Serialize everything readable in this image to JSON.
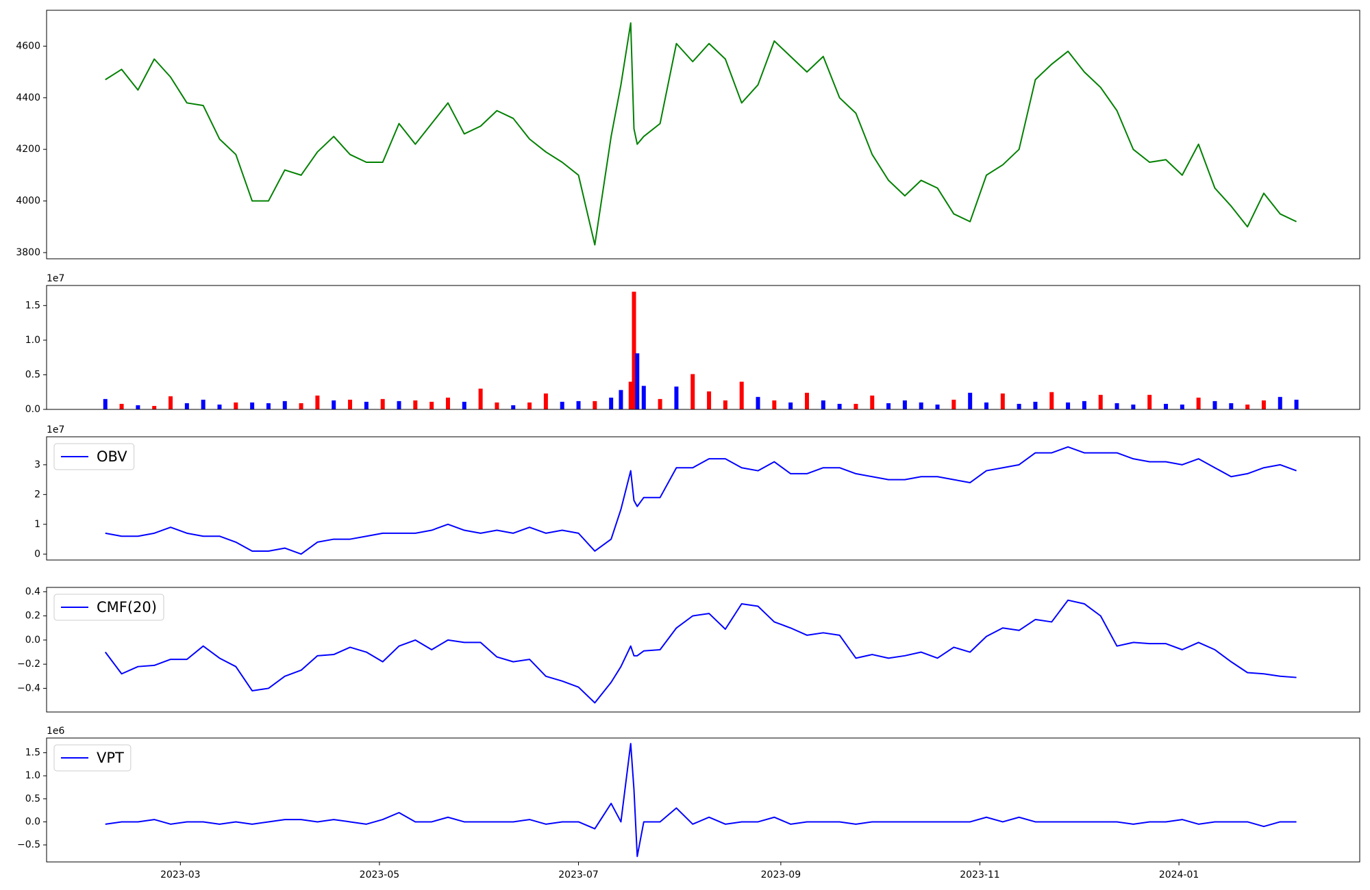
{
  "chart_data": [
    {
      "type": "line",
      "x": [
        36,
        41,
        46,
        51,
        56,
        61,
        66,
        71,
        76,
        81,
        86,
        91,
        96,
        101,
        106,
        111,
        116,
        121,
        126,
        131,
        136,
        141,
        146,
        151,
        156,
        161,
        166,
        171,
        176,
        181,
        186,
        191,
        194,
        197,
        198,
        199,
        201,
        206,
        211,
        216,
        221,
        226,
        231,
        236,
        241,
        246,
        251,
        256,
        261,
        266,
        271,
        276,
        281,
        286,
        291,
        296,
        301,
        306,
        311,
        316,
        321,
        326,
        331,
        336,
        341,
        346,
        351,
        356,
        361,
        366,
        371,
        376,
        381,
        386,
        391,
        396,
        401
      ],
      "series": [
        {
          "color": "#008000",
          "values": [
            4470,
            4510,
            4430,
            4550,
            4480,
            4380,
            4370,
            4240,
            4180,
            4000,
            4000,
            4120,
            4100,
            4190,
            4250,
            4180,
            4150,
            4150,
            4300,
            4220,
            4300,
            4380,
            4260,
            4290,
            4350,
            4320,
            4240,
            4190,
            4150,
            4100,
            3830,
            4250,
            4450,
            4690,
            4280,
            4220,
            4250,
            4300,
            4610,
            4540,
            4610,
            4550,
            4380,
            4450,
            4620,
            4560,
            4500,
            4560,
            4400,
            4340,
            4180,
            4080,
            4020,
            4080,
            4050,
            3950,
            3920,
            4100,
            4140,
            4200,
            4470,
            4530,
            4580,
            4500,
            4440,
            4350,
            4200,
            4150,
            4160,
            4100,
            4220,
            4050,
            3980,
            3900,
            4030,
            3950,
            3920
          ]
        }
      ],
      "xlim": [
        18,
        420.4
      ],
      "ylim": [
        3776,
        4739
      ],
      "yticks": [
        3800,
        4000,
        4200,
        4400,
        4600
      ]
    },
    {
      "type": "bar",
      "x": [
        36,
        41,
        46,
        51,
        56,
        61,
        66,
        71,
        76,
        81,
        86,
        91,
        96,
        101,
        106,
        111,
        116,
        121,
        126,
        131,
        136,
        141,
        146,
        151,
        156,
        161,
        166,
        171,
        176,
        181,
        186,
        191,
        194,
        197,
        198,
        199,
        201,
        206,
        211,
        216,
        221,
        226,
        231,
        236,
        241,
        246,
        251,
        256,
        261,
        266,
        271,
        276,
        281,
        286,
        291,
        296,
        301,
        306,
        311,
        316,
        321,
        326,
        331,
        336,
        341,
        346,
        351,
        356,
        361,
        366,
        371,
        376,
        381,
        386,
        391,
        396,
        401
      ],
      "values": [
        1500000,
        800000,
        600000,
        500000,
        1900000,
        900000,
        1400000,
        700000,
        1000000,
        1000000,
        900000,
        1200000,
        900000,
        2000000,
        1300000,
        1400000,
        1100000,
        1500000,
        1200000,
        1300000,
        1100000,
        1700000,
        1100000,
        3000000,
        1000000,
        600000,
        1000000,
        2300000,
        1100000,
        1200000,
        1200000,
        1700000,
        2800000,
        4000000,
        17000000,
        8100000,
        3400000,
        1500000,
        3300000,
        5100000,
        2600000,
        1300000,
        4000000,
        1800000,
        1300000,
        1000000,
        2400000,
        1300000,
        800000,
        800000,
        2000000,
        900000,
        1300000,
        1000000,
        700000,
        1400000,
        2400000,
        1000000,
        2300000,
        800000,
        1100000,
        2500000,
        1000000,
        1200000,
        2100000,
        900000,
        700000,
        2100000,
        800000,
        700000,
        1700000,
        1200000,
        900000,
        700000,
        1300000,
        1800000,
        1400000
      ],
      "colors": [
        "#0000ff",
        "#ff0000",
        "#0000ff",
        "#ff0000",
        "#ff0000",
        "#0000ff",
        "#0000ff",
        "#0000ff",
        "#ff0000",
        "#0000ff",
        "#0000ff",
        "#0000ff",
        "#ff0000",
        "#ff0000",
        "#0000ff",
        "#ff0000",
        "#0000ff",
        "#ff0000",
        "#0000ff",
        "#ff0000",
        "#ff0000",
        "#ff0000",
        "#0000ff",
        "#ff0000",
        "#ff0000",
        "#0000ff",
        "#ff0000",
        "#ff0000",
        "#0000ff",
        "#0000ff",
        "#ff0000",
        "#0000ff",
        "#0000ff",
        "#ff0000",
        "#ff0000",
        "#0000ff",
        "#0000ff",
        "#ff0000",
        "#0000ff",
        "#ff0000",
        "#ff0000",
        "#ff0000",
        "#ff0000",
        "#0000ff",
        "#ff0000",
        "#0000ff",
        "#ff0000",
        "#0000ff",
        "#0000ff",
        "#ff0000",
        "#ff0000",
        "#0000ff",
        "#0000ff",
        "#0000ff",
        "#0000ff",
        "#ff0000",
        "#0000ff",
        "#0000ff",
        "#ff0000",
        "#0000ff",
        "#0000ff",
        "#ff0000",
        "#0000ff",
        "#0000ff",
        "#ff0000",
        "#0000ff",
        "#0000ff",
        "#ff0000",
        "#0000ff",
        "#0000ff",
        "#ff0000",
        "#0000ff",
        "#0000ff",
        "#ff0000",
        "#ff0000",
        "#0000ff",
        "#0000ff"
      ],
      "xlim": [
        18,
        420.4
      ],
      "ylim": [
        0,
        17900000
      ],
      "offset_label": "1e7",
      "yticks": [
        {
          "value": 0,
          "label": "0.0"
        },
        {
          "value": 5000000,
          "label": "0.5"
        },
        {
          "value": 10000000,
          "label": "1.0"
        },
        {
          "value": 15000000,
          "label": "1.5"
        }
      ]
    },
    {
      "type": "line",
      "x": [
        36,
        41,
        46,
        51,
        56,
        61,
        66,
        71,
        76,
        81,
        86,
        91,
        96,
        101,
        106,
        111,
        116,
        121,
        126,
        131,
        136,
        141,
        146,
        151,
        156,
        161,
        166,
        171,
        176,
        181,
        186,
        191,
        194,
        197,
        198,
        199,
        201,
        206,
        211,
        216,
        221,
        226,
        231,
        236,
        241,
        246,
        251,
        256,
        261,
        266,
        271,
        276,
        281,
        286,
        291,
        296,
        301,
        306,
        311,
        316,
        321,
        326,
        331,
        336,
        341,
        346,
        351,
        356,
        361,
        366,
        371,
        376,
        381,
        386,
        391,
        396,
        401
      ],
      "series": [
        {
          "name": "OBV",
          "color": "#0000ff",
          "values": [
            7000000,
            6000000,
            6000000,
            7000000,
            9000000,
            7000000,
            6000000,
            6000000,
            4000000,
            1000000,
            1000000,
            2000000,
            0,
            4000000,
            5000000,
            5000000,
            6000000,
            7000000,
            7000000,
            7000000,
            8000000,
            10000000,
            8000000,
            7000000,
            8000000,
            7000000,
            9000000,
            7000000,
            8000000,
            7000000,
            1000000,
            5000000,
            15000000,
            28000000,
            18000000,
            16000000,
            19000000,
            19000000,
            29000000,
            29000000,
            32000000,
            32000000,
            29000000,
            28000000,
            31000000,
            27000000,
            27000000,
            29000000,
            29000000,
            27000000,
            26000000,
            25000000,
            25000000,
            26000000,
            26000000,
            25000000,
            24000000,
            28000000,
            29000000,
            30000000,
            34000000,
            34000000,
            36000000,
            34000000,
            34000000,
            34000000,
            32000000,
            31000000,
            31000000,
            30000000,
            32000000,
            29000000,
            26000000,
            27000000,
            29000000,
            30000000,
            28000000
          ]
        }
      ],
      "xlim": [
        18,
        420.4
      ],
      "ylim": [
        -2000000,
        39400000
      ],
      "offset_label": "1e7",
      "legend": "upper left",
      "yticks": [
        {
          "value": 0,
          "label": "0"
        },
        {
          "value": 10000000,
          "label": "1"
        },
        {
          "value": 20000000,
          "label": "2"
        },
        {
          "value": 30000000,
          "label": "3"
        }
      ]
    },
    {
      "type": "line",
      "x": [
        36,
        41,
        46,
        51,
        56,
        61,
        66,
        71,
        76,
        81,
        86,
        91,
        96,
        101,
        106,
        111,
        116,
        121,
        126,
        131,
        136,
        141,
        146,
        151,
        156,
        161,
        166,
        171,
        176,
        181,
        186,
        191,
        194,
        197,
        198,
        199,
        201,
        206,
        211,
        216,
        221,
        226,
        231,
        236,
        241,
        246,
        251,
        256,
        261,
        266,
        271,
        276,
        281,
        286,
        291,
        296,
        301,
        306,
        311,
        316,
        321,
        326,
        331,
        336,
        341,
        346,
        351,
        356,
        361,
        366,
        371,
        376,
        381,
        386,
        391,
        396,
        401
      ],
      "series": [
        {
          "name": "CMF(20)",
          "color": "#0000ff",
          "values": [
            -0.1,
            -0.28,
            -0.22,
            -0.21,
            -0.16,
            -0.16,
            -0.05,
            -0.15,
            -0.22,
            -0.42,
            -0.4,
            -0.3,
            -0.25,
            -0.13,
            -0.12,
            -0.06,
            -0.1,
            -0.18,
            -0.05,
            0.0,
            -0.08,
            0.0,
            -0.02,
            -0.02,
            -0.14,
            -0.18,
            -0.16,
            -0.3,
            -0.34,
            -0.39,
            -0.52,
            -0.35,
            -0.22,
            -0.05,
            -0.13,
            -0.13,
            -0.09,
            -0.08,
            0.1,
            0.2,
            0.22,
            0.09,
            0.3,
            0.28,
            0.15,
            0.1,
            0.04,
            0.06,
            0.04,
            -0.15,
            -0.12,
            -0.15,
            -0.13,
            -0.1,
            -0.15,
            -0.06,
            -0.1,
            0.03,
            0.1,
            0.08,
            0.17,
            0.15,
            0.33,
            0.3,
            0.2,
            -0.05,
            -0.02,
            -0.03,
            -0.03,
            -0.08,
            -0.02,
            -0.08,
            -0.18,
            -0.27,
            -0.28,
            -0.3,
            -0.31
          ]
        }
      ],
      "xlim": [
        18,
        420.4
      ],
      "ylim": [
        -0.596,
        0.436
      ],
      "legend": "upper left",
      "yticks": [
        {
          "value": -0.4,
          "label": "−0.4"
        },
        {
          "value": -0.2,
          "label": "−0.2"
        },
        {
          "value": 0,
          "label": "0.0"
        },
        {
          "value": 0.2,
          "label": "0.2"
        },
        {
          "value": 0.4,
          "label": "0.4"
        }
      ]
    },
    {
      "type": "line",
      "x": [
        36,
        41,
        46,
        51,
        56,
        61,
        66,
        71,
        76,
        81,
        86,
        91,
        96,
        101,
        106,
        111,
        116,
        121,
        126,
        131,
        136,
        141,
        146,
        151,
        156,
        161,
        166,
        171,
        176,
        181,
        186,
        191,
        194,
        197,
        198,
        199,
        201,
        206,
        211,
        216,
        221,
        226,
        231,
        236,
        241,
        246,
        251,
        256,
        261,
        266,
        271,
        276,
        281,
        286,
        291,
        296,
        301,
        306,
        311,
        316,
        321,
        326,
        331,
        336,
        341,
        346,
        351,
        356,
        361,
        366,
        371,
        376,
        381,
        386,
        391,
        396,
        401
      ],
      "series": [
        {
          "name": "VPT",
          "color": "#0000ff",
          "values": [
            -50000,
            0,
            0,
            50000,
            -50000,
            0,
            0,
            -50000,
            0,
            -50000,
            0,
            50000,
            50000,
            0,
            50000,
            0,
            -50000,
            50000,
            200000,
            0,
            0,
            100000,
            0,
            0,
            0,
            0,
            50000,
            -50000,
            0,
            0,
            -150000,
            400000,
            0,
            1700000,
            700000,
            -750000,
            0,
            0,
            300000,
            -50000,
            100000,
            -50000,
            0,
            0,
            100000,
            -50000,
            0,
            0,
            0,
            -50000,
            0,
            0,
            0,
            0,
            0,
            0,
            0,
            100000,
            0,
            100000,
            0,
            0,
            0,
            0,
            0,
            0,
            -50000,
            0,
            0,
            50000,
            -50000,
            0,
            0,
            0,
            -100000,
            0,
            0
          ]
        }
      ],
      "xlim": [
        18,
        420.4
      ],
      "ylim": [
        -870000,
        1820000
      ],
      "offset_label": "1e6",
      "legend": "upper left",
      "yticks": [
        {
          "value": -500000,
          "label": "−0.5"
        },
        {
          "value": 0,
          "label": "0.0"
        },
        {
          "value": 500000,
          "label": "0.5"
        },
        {
          "value": 1000000,
          "label": "1.0"
        },
        {
          "value": 1500000,
          "label": "1.5"
        }
      ],
      "xticks": [
        {
          "value": 59,
          "label": "2023-03"
        },
        {
          "value": 120,
          "label": "2023-05"
        },
        {
          "value": 181,
          "label": "2023-07"
        },
        {
          "value": 243,
          "label": "2023-09"
        },
        {
          "value": 304,
          "label": "2023-11"
        },
        {
          "value": 365,
          "label": "2024-01"
        }
      ]
    }
  ]
}
